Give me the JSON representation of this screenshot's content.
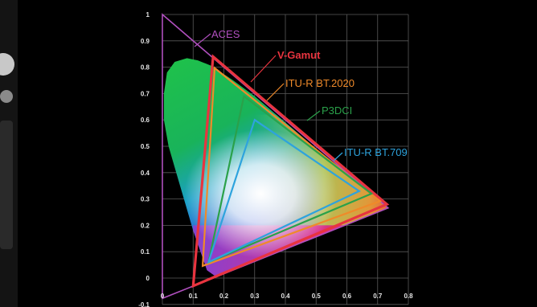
{
  "chart_data": {
    "type": "scatter",
    "title": "",
    "xlabel": "",
    "ylabel": "",
    "xlim": [
      0,
      0.8
    ],
    "ylim": [
      -0.1,
      1.0
    ],
    "grid": true,
    "x_ticks": [
      "0",
      "0.1",
      "0.2",
      "0.3",
      "0.4",
      "0.5",
      "0.6",
      "0.7",
      "0.8"
    ],
    "y_ticks": [
      "-0.1",
      "0",
      "0.1",
      "0.2",
      "0.3",
      "0.4",
      "0.5",
      "0.6",
      "0.7",
      "0.8",
      "0.9",
      "1"
    ],
    "spectral_locus": [
      [
        0.175,
        0.005
      ],
      [
        0.145,
        0.03
      ],
      [
        0.1,
        0.18
      ],
      [
        0.07,
        0.3
      ],
      [
        0.045,
        0.4
      ],
      [
        0.02,
        0.5
      ],
      [
        0.005,
        0.6
      ],
      [
        0.005,
        0.7
      ],
      [
        0.015,
        0.78
      ],
      [
        0.04,
        0.82
      ],
      [
        0.08,
        0.834
      ],
      [
        0.115,
        0.826
      ],
      [
        0.16,
        0.805
      ],
      [
        0.23,
        0.75
      ],
      [
        0.3,
        0.69
      ],
      [
        0.37,
        0.62
      ],
      [
        0.44,
        0.55
      ],
      [
        0.51,
        0.48
      ],
      [
        0.6,
        0.4
      ],
      [
        0.66,
        0.335
      ],
      [
        0.735,
        0.265
      ]
    ],
    "series": [
      {
        "name": "ACES",
        "color": "#b04fbe",
        "points": [
          [
            0.0,
            1.0
          ],
          [
            0.734,
            0.266
          ],
          [
            0.0,
            -0.077
          ]
        ]
      },
      {
        "name": "V-Gamut",
        "color": "#e8343f",
        "points": [
          [
            0.165,
            0.84
          ],
          [
            0.73,
            0.28
          ],
          [
            0.1,
            -0.03
          ]
        ]
      },
      {
        "name": "ITU-R BT.2020",
        "color": "#ef8a2a",
        "points": [
          [
            0.17,
            0.797
          ],
          [
            0.708,
            0.292
          ],
          [
            0.131,
            0.046
          ]
        ]
      },
      {
        "name": "P3DCI",
        "color": "#2aa14a",
        "points": [
          [
            0.265,
            0.69
          ],
          [
            0.68,
            0.32
          ],
          [
            0.15,
            0.06
          ]
        ]
      },
      {
        "name": "ITU-R BT.709",
        "color": "#2ea3dd",
        "points": [
          [
            0.3,
            0.6
          ],
          [
            0.64,
            0.33
          ],
          [
            0.15,
            0.06
          ]
        ]
      }
    ]
  }
}
